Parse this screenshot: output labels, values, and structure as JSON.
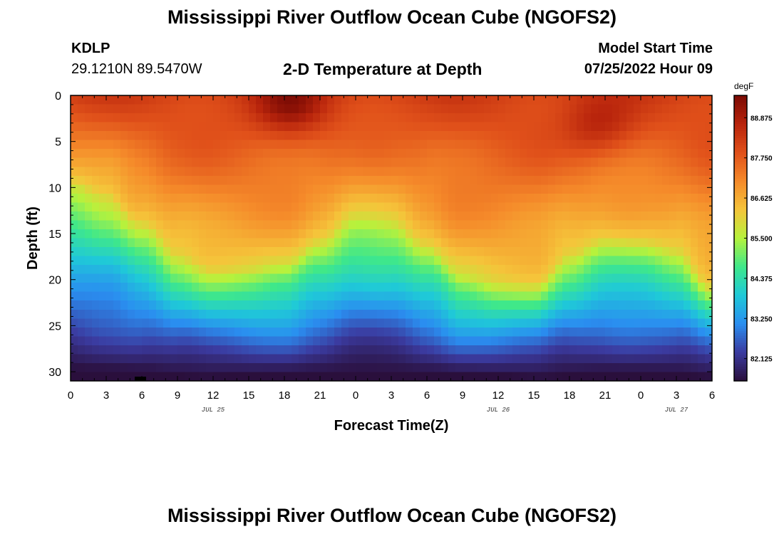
{
  "header": {
    "title": "Mississippi River Outflow Ocean Cube (NGOFS2)",
    "station_id": "KDLP",
    "coordinates": "29.1210N  89.5470W",
    "subtitle": "2-D Temperature at Depth",
    "model_start_label": "Model Start Time",
    "model_start_value": "07/25/2022 Hour 09"
  },
  "footer": {
    "title": "Mississippi River Outflow Ocean Cube (NGOFS2)"
  },
  "chart_data": {
    "type": "heatmap",
    "title": "2-D Temperature at Depth",
    "xlabel": "Forecast Time(Z)",
    "ylabel": "Depth (ft)",
    "x_ticks": [
      "0",
      "3",
      "6",
      "9",
      "12",
      "15",
      "18",
      "21",
      "0",
      "3",
      "6",
      "9",
      "12",
      "15",
      "18",
      "21",
      "0",
      "3",
      "6"
    ],
    "x_day_labels": [
      {
        "label": "JUL 25",
        "hour": 12
      },
      {
        "label": "JUL 26",
        "hour": 36
      },
      {
        "label": "JUL 27",
        "hour": 51
      }
    ],
    "x_range_hours": [
      0,
      54
    ],
    "y_ticks": [
      0,
      5,
      10,
      15,
      20,
      25,
      30
    ],
    "y_range_ft": [
      0,
      31
    ],
    "y_inverted": true,
    "colorbar": {
      "unit": "degF",
      "range": [
        81.5,
        89.5
      ],
      "tick_values": [
        88.875,
        87.75,
        86.625,
        85.5,
        84.375,
        83.25,
        82.125
      ],
      "tick_labels": [
        "88.875",
        "87.750",
        "86.625",
        "85.500",
        "84.375",
        "83.250",
        "82.125"
      ],
      "colormap": [
        "#2a0f3c",
        "#3b3ba0",
        "#2a8ef0",
        "#1fc9d8",
        "#3fe88a",
        "#b6f23c",
        "#f5c43a",
        "#f58a2a",
        "#e0501a",
        "#b8240c",
        "#7a0a04"
      ]
    },
    "thermocline_depth_ft": {
      "hours": [
        0,
        3,
        6,
        9,
        12,
        15,
        18,
        21,
        24,
        27,
        30,
        33,
        36,
        39,
        42,
        45,
        48,
        51,
        54
      ],
      "values": [
        9.6,
        11.0,
        14.0,
        17.5,
        19.0,
        19.0,
        18.6,
        16.0,
        13.5,
        14.0,
        16.5,
        19.8,
        20.6,
        20.6,
        17.5,
        15.8,
        16.0,
        17.0,
        20.8
      ]
    },
    "surface_max_degF": [
      {
        "hour": 18.5,
        "depth_ft": 1,
        "value": 89.3
      },
      {
        "hour": 44.5,
        "depth_ft": 3.5,
        "value": 89.0
      }
    ]
  }
}
